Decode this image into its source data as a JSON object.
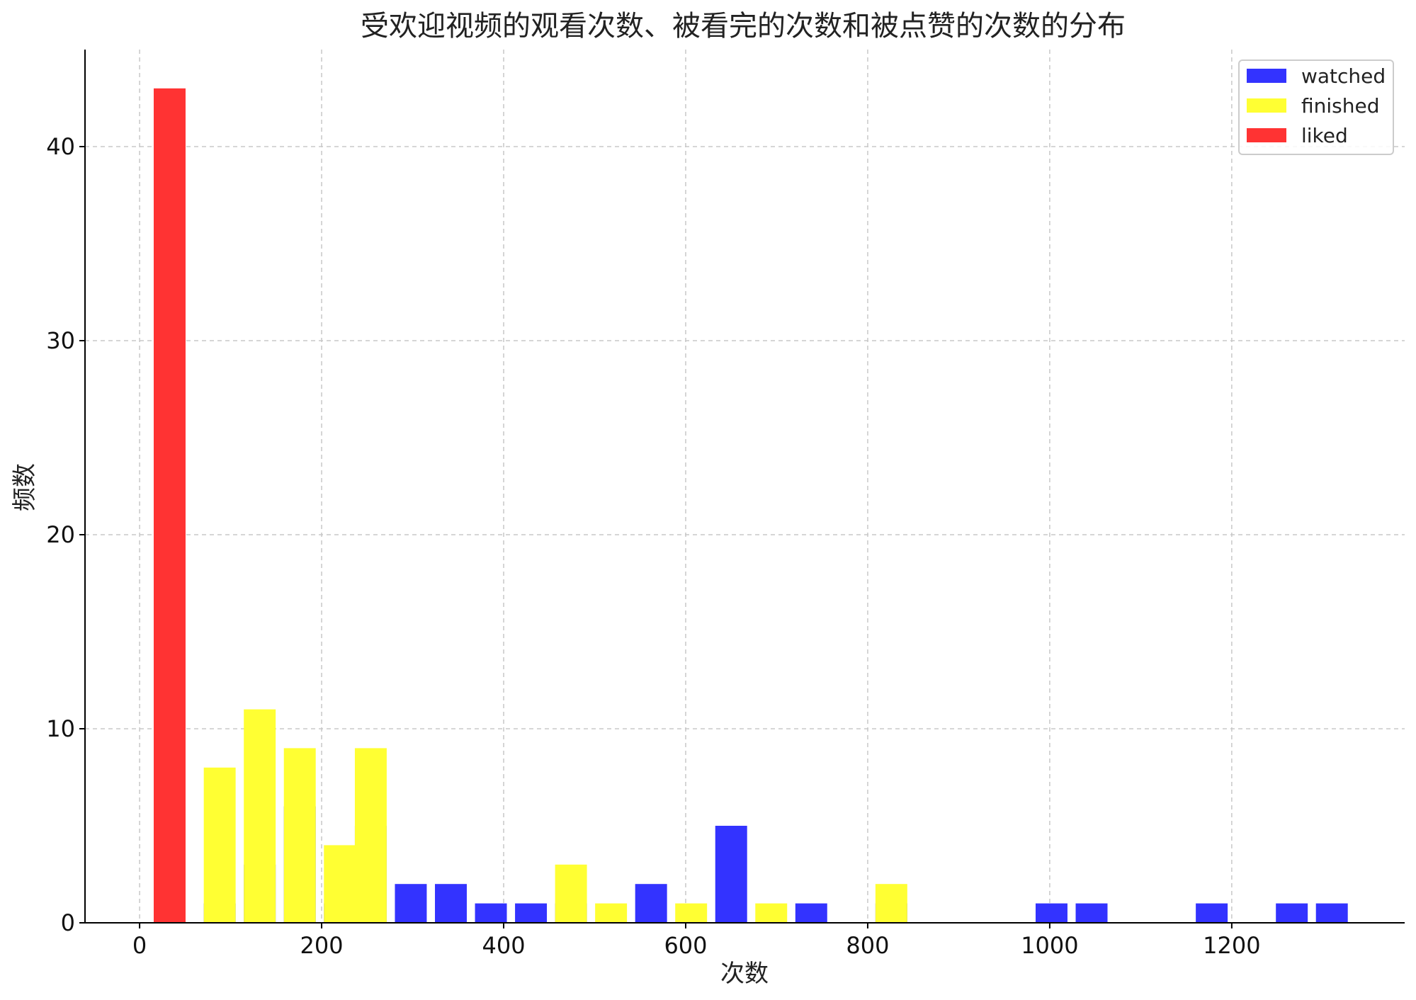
{
  "chart_data": {
    "type": "bar",
    "title": "受欢迎视频的观看次数、被看完的次数和被点赞的次数的分布",
    "xlabel": "次数",
    "ylabel": "频数",
    "xlim": [
      -60,
      1390
    ],
    "ylim": [
      0,
      45
    ],
    "xticks": [
      0,
      200,
      400,
      600,
      800,
      1000,
      1200
    ],
    "yticks": [
      0,
      10,
      20,
      30,
      40
    ],
    "grid": true,
    "bar_width": 35,
    "legend_position": "top-right",
    "series": [
      {
        "name": "watched",
        "color": "#3333ff",
        "points": [
          {
            "x": 88,
            "y": 1
          },
          {
            "x": 132,
            "y": 3
          },
          {
            "x": 176,
            "y": 6
          },
          {
            "x": 220,
            "y": 1
          },
          {
            "x": 254,
            "y": 5
          },
          {
            "x": 298,
            "y": 2
          },
          {
            "x": 342,
            "y": 2
          },
          {
            "x": 386,
            "y": 1
          },
          {
            "x": 430,
            "y": 1
          },
          {
            "x": 474,
            "y": 1
          },
          {
            "x": 562,
            "y": 2
          },
          {
            "x": 650,
            "y": 5
          },
          {
            "x": 738,
            "y": 1
          },
          {
            "x": 826,
            "y": 1
          },
          {
            "x": 1002,
            "y": 1
          },
          {
            "x": 1046,
            "y": 1
          },
          {
            "x": 1178,
            "y": 1
          },
          {
            "x": 1266,
            "y": 1
          },
          {
            "x": 1310,
            "y": 1
          }
        ]
      },
      {
        "name": "finished",
        "color": "#ffff33",
        "points": [
          {
            "x": 33,
            "y": 6
          },
          {
            "x": 88,
            "y": 8
          },
          {
            "x": 132,
            "y": 11
          },
          {
            "x": 176,
            "y": 9
          },
          {
            "x": 220,
            "y": 4
          },
          {
            "x": 254,
            "y": 9
          },
          {
            "x": 474,
            "y": 3
          },
          {
            "x": 518,
            "y": 1
          },
          {
            "x": 606,
            "y": 1
          },
          {
            "x": 694,
            "y": 1
          },
          {
            "x": 826,
            "y": 2
          }
        ]
      },
      {
        "name": "liked",
        "color": "#ff3333",
        "points": [
          {
            "x": 33,
            "y": 43
          }
        ]
      }
    ]
  }
}
